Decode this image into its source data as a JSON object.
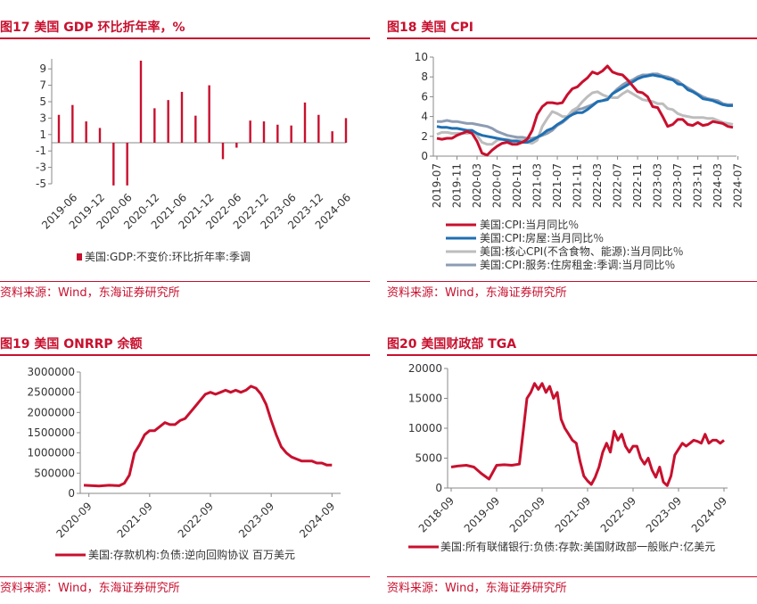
{
  "panels": [
    {
      "title": "图17   美国 GDP 环比折年率，%",
      "source": "资料来源：Wind，东海证券研究所"
    },
    {
      "title": "图18   美国 CPI",
      "source": "资料来源：Wind，东海证券研究所"
    },
    {
      "title": "图19   美国 ONRRP 余额",
      "source": "资料来源：Wind，东海证券研究所"
    },
    {
      "title": "图20   美国财政部 TGA",
      "source": "资料来源：Wind，东海证券研究所"
    }
  ],
  "colors": {
    "red": "#c8102e",
    "blue": "#1f6fb2",
    "lightgray": "#bdbdbd",
    "slategray": "#8d9cb3"
  },
  "chart_data": [
    {
      "type": "bar",
      "ylim": [
        -5,
        10
      ],
      "yticks": [
        -5,
        -3,
        -1,
        1,
        3,
        5,
        7,
        9
      ],
      "xtick_labels": [
        "2019-06",
        "2019-12",
        "2020-06",
        "2020-12",
        "2021-06",
        "2021-12",
        "2022-06",
        "2022-12",
        "2023-06",
        "2023-12",
        "2024-06"
      ],
      "categories": [
        "2019-03",
        "2019-06",
        "2019-09",
        "2019-12",
        "2020-03",
        "2020-06",
        "2020-09",
        "2020-12",
        "2021-03",
        "2021-06",
        "2021-09",
        "2021-12",
        "2022-03",
        "2022-06",
        "2022-09",
        "2022-12",
        "2023-03",
        "2023-06",
        "2023-09",
        "2023-12",
        "2024-03",
        "2024-06"
      ],
      "series": [
        {
          "name": "美国:GDP:不变价:环比折年率:季调",
          "values": [
            3.4,
            4.6,
            2.6,
            1.8,
            -5.2,
            -5.2,
            10.0,
            4.2,
            5.2,
            6.2,
            3.3,
            7.0,
            -2.0,
            -0.6,
            2.7,
            2.6,
            2.2,
            2.1,
            4.9,
            3.4,
            1.4,
            3.0
          ]
        }
      ]
    },
    {
      "type": "line",
      "ylim": [
        0,
        10
      ],
      "yticks": [
        0,
        2,
        4,
        6,
        8,
        10
      ],
      "x_start": "2019-07",
      "xtick_labels": [
        "2019-07",
        "2019-11",
        "2020-03",
        "2020-07",
        "2020-11",
        "2021-03",
        "2021-07",
        "2021-11",
        "2022-03",
        "2022-07",
        "2022-11",
        "2023-03",
        "2023-07",
        "2023-11",
        "2024-03",
        "2024-07"
      ],
      "series": [
        {
          "name": "美国:CPI:当月同比％",
          "color": "#c8102e",
          "values": [
            1.8,
            1.7,
            1.8,
            1.8,
            2.1,
            2.3,
            2.5,
            2.3,
            1.5,
            0.3,
            0.1,
            0.6,
            1.0,
            1.3,
            1.4,
            1.2,
            1.2,
            1.4,
            1.7,
            2.6,
            4.2,
            5.0,
            5.4,
            5.4,
            5.3,
            5.4,
            6.2,
            6.8,
            7.0,
            7.5,
            7.9,
            8.5,
            8.3,
            8.6,
            9.1,
            8.5,
            8.3,
            8.2,
            7.7,
            7.1,
            6.5,
            6.4,
            6.0,
            5.0,
            4.9,
            4.0,
            3.0,
            3.2,
            3.7,
            3.7,
            3.2,
            3.1,
            3.4,
            3.1,
            3.2,
            3.5,
            3.4,
            3.3,
            3.0,
            2.9
          ]
        },
        {
          "name": "美国:CPI:房屋:当月同比％",
          "color": "#1f6fb2",
          "values": [
            3.0,
            2.9,
            2.9,
            2.8,
            2.8,
            2.7,
            2.6,
            2.6,
            2.3,
            2.1,
            2.0,
            1.9,
            1.8,
            1.7,
            1.6,
            1.5,
            1.5,
            1.4,
            1.4,
            1.6,
            1.9,
            2.2,
            2.6,
            2.8,
            3.2,
            3.5,
            3.9,
            4.2,
            4.4,
            4.4,
            4.7,
            5.1,
            5.5,
            5.6,
            5.7,
            6.3,
            6.6,
            6.9,
            7.2,
            7.5,
            7.8,
            8.0,
            8.1,
            8.2,
            8.1,
            8.0,
            7.8,
            7.7,
            7.3,
            7.2,
            6.7,
            6.5,
            6.2,
            5.8,
            5.7,
            5.6,
            5.4,
            5.2,
            5.1,
            5.1
          ]
        },
        {
          "name": "美国:核心CPI(不含食物、能源):当月同比％",
          "color": "#bdbdbd",
          "values": [
            2.2,
            2.4,
            2.4,
            2.3,
            2.3,
            2.3,
            2.3,
            2.4,
            2.1,
            1.4,
            1.2,
            1.2,
            1.6,
            1.7,
            1.7,
            1.6,
            1.6,
            1.6,
            1.4,
            1.3,
            1.6,
            3.0,
            3.8,
            4.5,
            4.3,
            4.0,
            4.0,
            4.6,
            4.9,
            5.5,
            6.0,
            6.4,
            6.5,
            6.2,
            6.0,
            5.9,
            5.9,
            6.3,
            6.6,
            6.3,
            6.0,
            5.7,
            5.6,
            5.5,
            5.3,
            5.3,
            4.8,
            4.7,
            4.3,
            4.1,
            4.0,
            3.9,
            3.9,
            3.9,
            3.8,
            3.8,
            3.6,
            3.4,
            3.3,
            3.2
          ]
        },
        {
          "name": "美国:CPI:服务:住房租金:季调:当月同比％",
          "color": "#8d9cb3",
          "values": [
            3.5,
            3.5,
            3.6,
            3.5,
            3.5,
            3.4,
            3.3,
            3.3,
            3.2,
            3.1,
            3.0,
            2.8,
            2.5,
            2.3,
            2.1,
            2.0,
            1.9,
            1.9,
            1.8,
            1.8,
            1.9,
            2.1,
            2.3,
            2.6,
            3.1,
            3.4,
            3.8,
            4.4,
            4.7,
            4.8,
            5.0,
            5.2,
            5.5,
            5.6,
            5.8,
            6.3,
            6.8,
            7.2,
            7.5,
            7.7,
            8.0,
            8.2,
            8.2,
            8.3,
            8.3,
            8.1,
            8.0,
            7.8,
            7.6,
            7.2,
            6.9,
            6.6,
            6.3,
            6.0,
            5.8,
            5.7,
            5.6,
            5.3,
            5.2,
            5.2
          ]
        }
      ]
    },
    {
      "type": "line",
      "ylim": [
        0,
        3000000
      ],
      "yticks": [
        0,
        500000,
        1000000,
        1500000,
        2000000,
        2500000,
        3000000
      ],
      "xtick_labels": [
        "2020-09",
        "2021-09",
        "2022-09",
        "2023-09",
        "2024-09"
      ],
      "series": [
        {
          "name": "美国:存款机构:负债:逆向回购协议 百万美元",
          "color": "#c8102e",
          "x": [
            "2020-08",
            "2020-11",
            "2021-01",
            "2021-03",
            "2021-04",
            "2021-05",
            "2021-06",
            "2021-07",
            "2021-08",
            "2021-09",
            "2021-10",
            "2021-11",
            "2021-12",
            "2022-01",
            "2022-02",
            "2022-03",
            "2022-04",
            "2022-05",
            "2022-06",
            "2022-07",
            "2022-08",
            "2022-09",
            "2022-10",
            "2022-11",
            "2022-12",
            "2023-01",
            "2023-02",
            "2023-03",
            "2023-04",
            "2023-05",
            "2023-06",
            "2023-07",
            "2023-08",
            "2023-09",
            "2023-10",
            "2023-11",
            "2023-12",
            "2024-01",
            "2024-02",
            "2024-03",
            "2024-04",
            "2024-05",
            "2024-06",
            "2024-07",
            "2024-08",
            "2024-09"
          ],
          "values": [
            200000,
            180000,
            200000,
            190000,
            250000,
            450000,
            1000000,
            1200000,
            1450000,
            1550000,
            1550000,
            1650000,
            1750000,
            1700000,
            1700000,
            1800000,
            1850000,
            2000000,
            2150000,
            2300000,
            2450000,
            2500000,
            2450000,
            2500000,
            2550000,
            2500000,
            2550000,
            2500000,
            2550000,
            2650000,
            2600000,
            2450000,
            2200000,
            1800000,
            1450000,
            1150000,
            1000000,
            900000,
            850000,
            800000,
            800000,
            800000,
            750000,
            750000,
            700000,
            700000
          ]
        }
      ]
    },
    {
      "type": "line",
      "ylim": [
        0,
        20000
      ],
      "yticks": [
        0,
        5000,
        10000,
        15000,
        20000
      ],
      "xtick_labels": [
        "2018-09",
        "2019-09",
        "2020-09",
        "2021-09",
        "2022-09",
        "2023-09",
        "2024-09"
      ],
      "series": [
        {
          "name": "美国:所有联储银行:负债:存款:美国财政部一般账户:亿美元",
          "color": "#c8102e",
          "x": [
            "2018-09",
            "2018-11",
            "2019-01",
            "2019-03",
            "2019-05",
            "2019-07",
            "2019-09",
            "2019-11",
            "2020-01",
            "2020-03",
            "2020-04",
            "2020-05",
            "2020-06",
            "2020-07",
            "2020-08",
            "2020-09",
            "2020-10",
            "2020-11",
            "2020-12",
            "2021-01",
            "2021-02",
            "2021-03",
            "2021-04",
            "2021-05",
            "2021-06",
            "2021-07",
            "2021-08",
            "2021-09",
            "2021-10",
            "2021-11",
            "2021-12",
            "2022-01",
            "2022-02",
            "2022-03",
            "2022-04",
            "2022-05",
            "2022-06",
            "2022-07",
            "2022-08",
            "2022-09",
            "2022-10",
            "2022-11",
            "2022-12",
            "2023-01",
            "2023-02",
            "2023-03",
            "2023-04",
            "2023-05",
            "2023-06",
            "2023-07",
            "2023-08",
            "2023-09",
            "2023-10",
            "2023-11",
            "2023-12",
            "2024-01",
            "2024-02",
            "2024-03",
            "2024-04",
            "2024-05",
            "2024-06",
            "2024-07",
            "2024-08",
            "2024-09"
          ],
          "values": [
            3500,
            3700,
            3800,
            3500,
            2400,
            1500,
            3800,
            3900,
            3800,
            4000,
            9500,
            15000,
            16000,
            17500,
            16500,
            17500,
            16000,
            17000,
            15000,
            16000,
            11500,
            10000,
            9000,
            8000,
            7500,
            4500,
            2000,
            1200,
            600,
            1800,
            3500,
            6000,
            7500,
            6000,
            9500,
            8000,
            9000,
            7000,
            6000,
            7000,
            7000,
            5000,
            4000,
            5000,
            3000,
            1800,
            3500,
            1000,
            400,
            2000,
            5500,
            6500,
            7500,
            7000,
            7500,
            8000,
            7800,
            7500,
            9000,
            7500,
            8000,
            8000,
            7500,
            8000
          ]
        }
      ]
    }
  ]
}
